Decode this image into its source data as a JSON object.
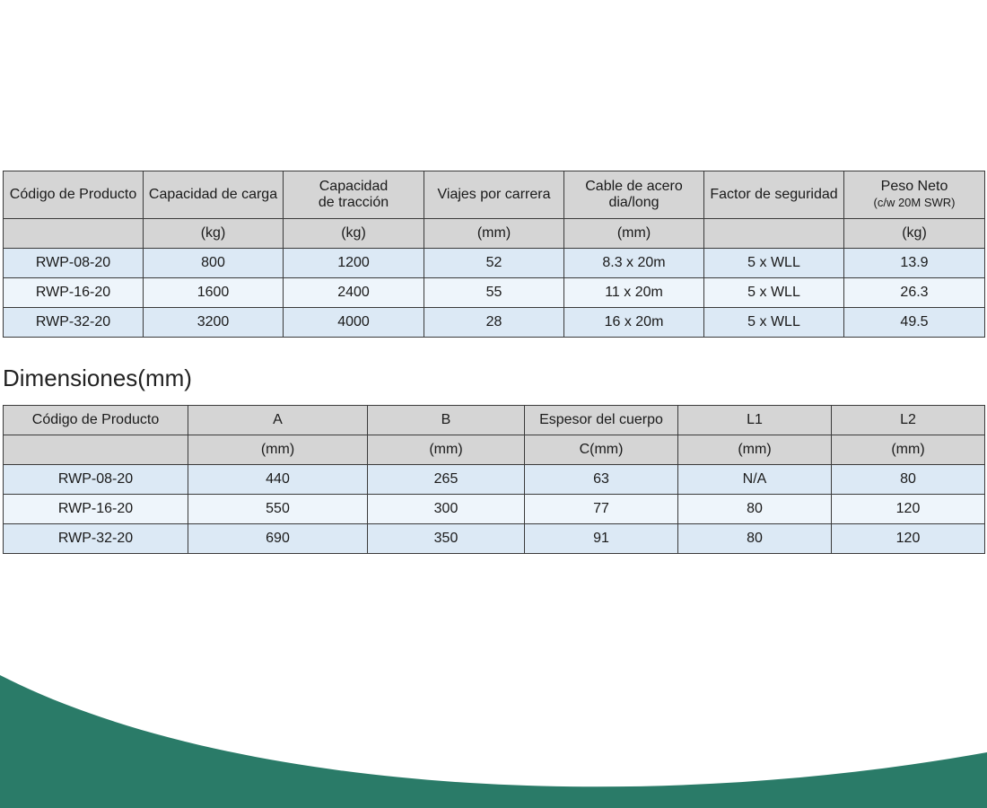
{
  "specs": {
    "headers": [
      "Código de Producto",
      "Capacidad de carga",
      "Capacidad",
      "de tracción",
      "Viajes por carrera",
      "Cable de acero",
      "dia/long",
      "Factor de seguridad",
      "Peso Neto",
      "(c/w 20M SWR)"
    ],
    "units": [
      "",
      "(kg)",
      "(kg)",
      "(mm)",
      "(mm)",
      "",
      "(kg)"
    ],
    "rows": [
      [
        "RWP-08-20",
        "800",
        "1200",
        "52",
        "8.3 x 20m",
        "5 x WLL",
        "13.9"
      ],
      [
        "RWP-16-20",
        "1600",
        "2400",
        "55",
        "11 x 20m",
        "5 x WLL",
        "26.3"
      ],
      [
        "RWP-32-20",
        "3200",
        "4000",
        "28",
        "16 x 20m",
        "5 x WLL",
        "49.5"
      ]
    ]
  },
  "dimensions": {
    "title": "Dimensiones(mm)",
    "headers": [
      "Código de Producto",
      "A",
      "B",
      "Espesor del cuerpo",
      "L1",
      "L2"
    ],
    "units": [
      "",
      "(mm)",
      "(mm)",
      "C(mm)",
      "(mm)",
      "(mm)"
    ],
    "rows": [
      [
        "RWP-08-20",
        "440",
        "265",
        "63",
        "N/A",
        "80"
      ],
      [
        "RWP-16-20",
        "550",
        "300",
        "77",
        "80",
        "120"
      ],
      [
        "RWP-32-20",
        "690",
        "350",
        "91",
        "80",
        "120"
      ]
    ]
  },
  "colors": {
    "header": "#d5d5d5",
    "row_a": "#dce9f5",
    "row_b": "#eef5fb",
    "wave": "#2a7b68"
  }
}
